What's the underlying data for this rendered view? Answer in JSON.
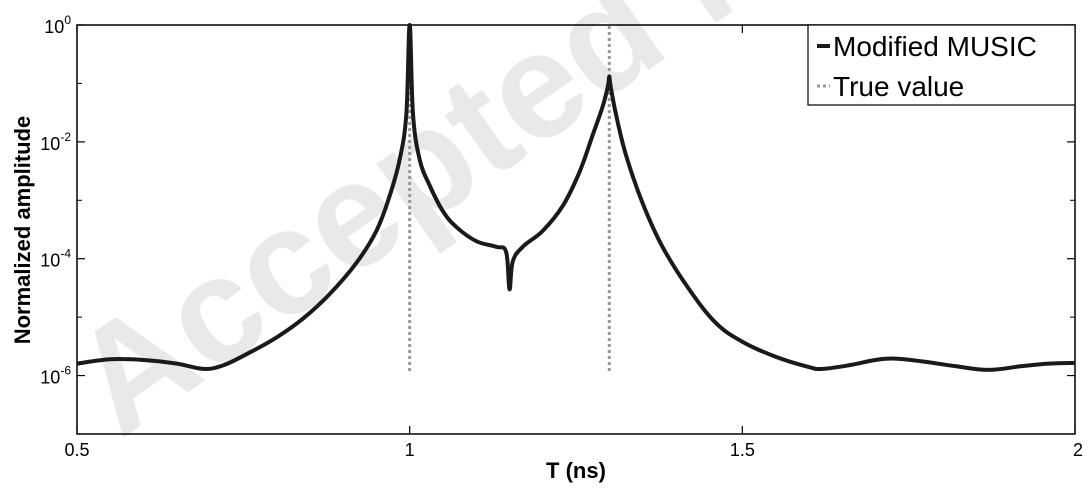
{
  "watermark": "Accepted manuscript",
  "chart_data": {
    "type": "line",
    "title": "",
    "xlabel": "T (ns)",
    "ylabel": "Normalized amplitude",
    "xlim": [
      0.5,
      2
    ],
    "ylim_log10": [
      -7,
      0
    ],
    "y_scale": "log",
    "grid": false,
    "legend_position": "top-right",
    "x_ticks": [
      0.5,
      1,
      1.5,
      2
    ],
    "x_tick_labels": [
      "0.5",
      "1",
      "1.5",
      "2"
    ],
    "y_tick_exponents": [
      0,
      -2,
      -4,
      -6
    ],
    "y_tick_base": "10",
    "y_tick_exp_labels": [
      "0",
      "-2",
      "-4",
      "-6"
    ],
    "series": [
      {
        "name": "Modified MUSIC",
        "color": "#1a1a1a",
        "style": "solid",
        "x": [
          0.5,
          0.55,
          0.6,
          0.65,
          0.69,
          0.72,
          0.76,
          0.8,
          0.84,
          0.88,
          0.92,
          0.95,
          0.97,
          0.985,
          0.995,
          1.0,
          1.005,
          1.015,
          1.03,
          1.05,
          1.07,
          1.1,
          1.13,
          1.145,
          1.15,
          1.155,
          1.17,
          1.2,
          1.23,
          1.255,
          1.275,
          1.29,
          1.298,
          1.3,
          1.302,
          1.31,
          1.325,
          1.35,
          1.38,
          1.42,
          1.46,
          1.5,
          1.55,
          1.6,
          1.62,
          1.66,
          1.7,
          1.73,
          1.77,
          1.82,
          1.87,
          1.92,
          1.96,
          2.0
        ],
        "y": [
          1.6e-06,
          1.9e-06,
          1.85e-06,
          1.6e-06,
          1.3e-06,
          1.5e-06,
          2.5e-06,
          4.5e-06,
          9.5e-06,
          2.5e-05,
          8.5e-05,
          0.0003,
          0.0012,
          0.005,
          0.03,
          1.0,
          0.03,
          0.005,
          0.0018,
          0.00065,
          0.00035,
          0.0002,
          0.00016,
          0.00013,
          3e-05,
          9e-05,
          0.00016,
          0.0003,
          0.0008,
          0.003,
          0.013,
          0.04,
          0.09,
          0.13,
          0.09,
          0.03,
          0.006,
          0.0009,
          0.00016,
          3e-05,
          8e-06,
          3.8e-06,
          2.1e-06,
          1.4e-06,
          1.3e-06,
          1.5e-06,
          1.85e-06,
          1.95e-06,
          1.75e-06,
          1.45e-06,
          1.25e-06,
          1.45e-06,
          1.6e-06,
          1.65e-06
        ]
      },
      {
        "name": "True value",
        "color": "#999999",
        "style": "dotted",
        "lines": [
          {
            "x": 1.0,
            "y_from": 1.2e-06,
            "y_to": 1.0
          },
          {
            "x": 1.3,
            "y_from": 1.2e-06,
            "y_to": 1.0
          }
        ]
      }
    ]
  }
}
